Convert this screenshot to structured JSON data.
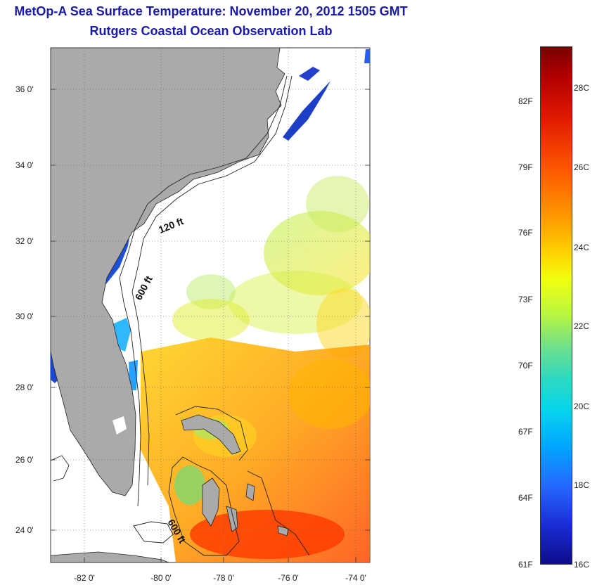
{
  "header": {
    "title": "MetOp-A Sea Surface Temperature:  November 20, 2012 1505 GMT",
    "subtitle": "Rutgers Coastal Ocean Observation Lab"
  },
  "map": {
    "lat_labels": [
      "36 0'",
      "34 0'",
      "32 0'",
      "30 0'",
      "28 0'",
      "26 0'",
      "24 0'"
    ],
    "lon_labels": [
      "-82 0'",
      "-80 0'",
      "-78 0'",
      "-76 0'",
      "-74 0'"
    ],
    "contours": [
      "120 ft",
      "600 ft",
      "600 ft"
    ],
    "colors": {
      "land": "#aaaaaa",
      "ocean": "#ffffff",
      "cold": "#1d3fc8",
      "warm": "#ff6a00"
    }
  },
  "colorbar": {
    "fahrenheit": [
      "82F",
      "79F",
      "76F",
      "73F",
      "70F",
      "67F",
      "64F",
      "61F"
    ],
    "celsius": [
      "28C",
      "26C",
      "24C",
      "22C",
      "20C",
      "18C",
      "16C"
    ]
  }
}
